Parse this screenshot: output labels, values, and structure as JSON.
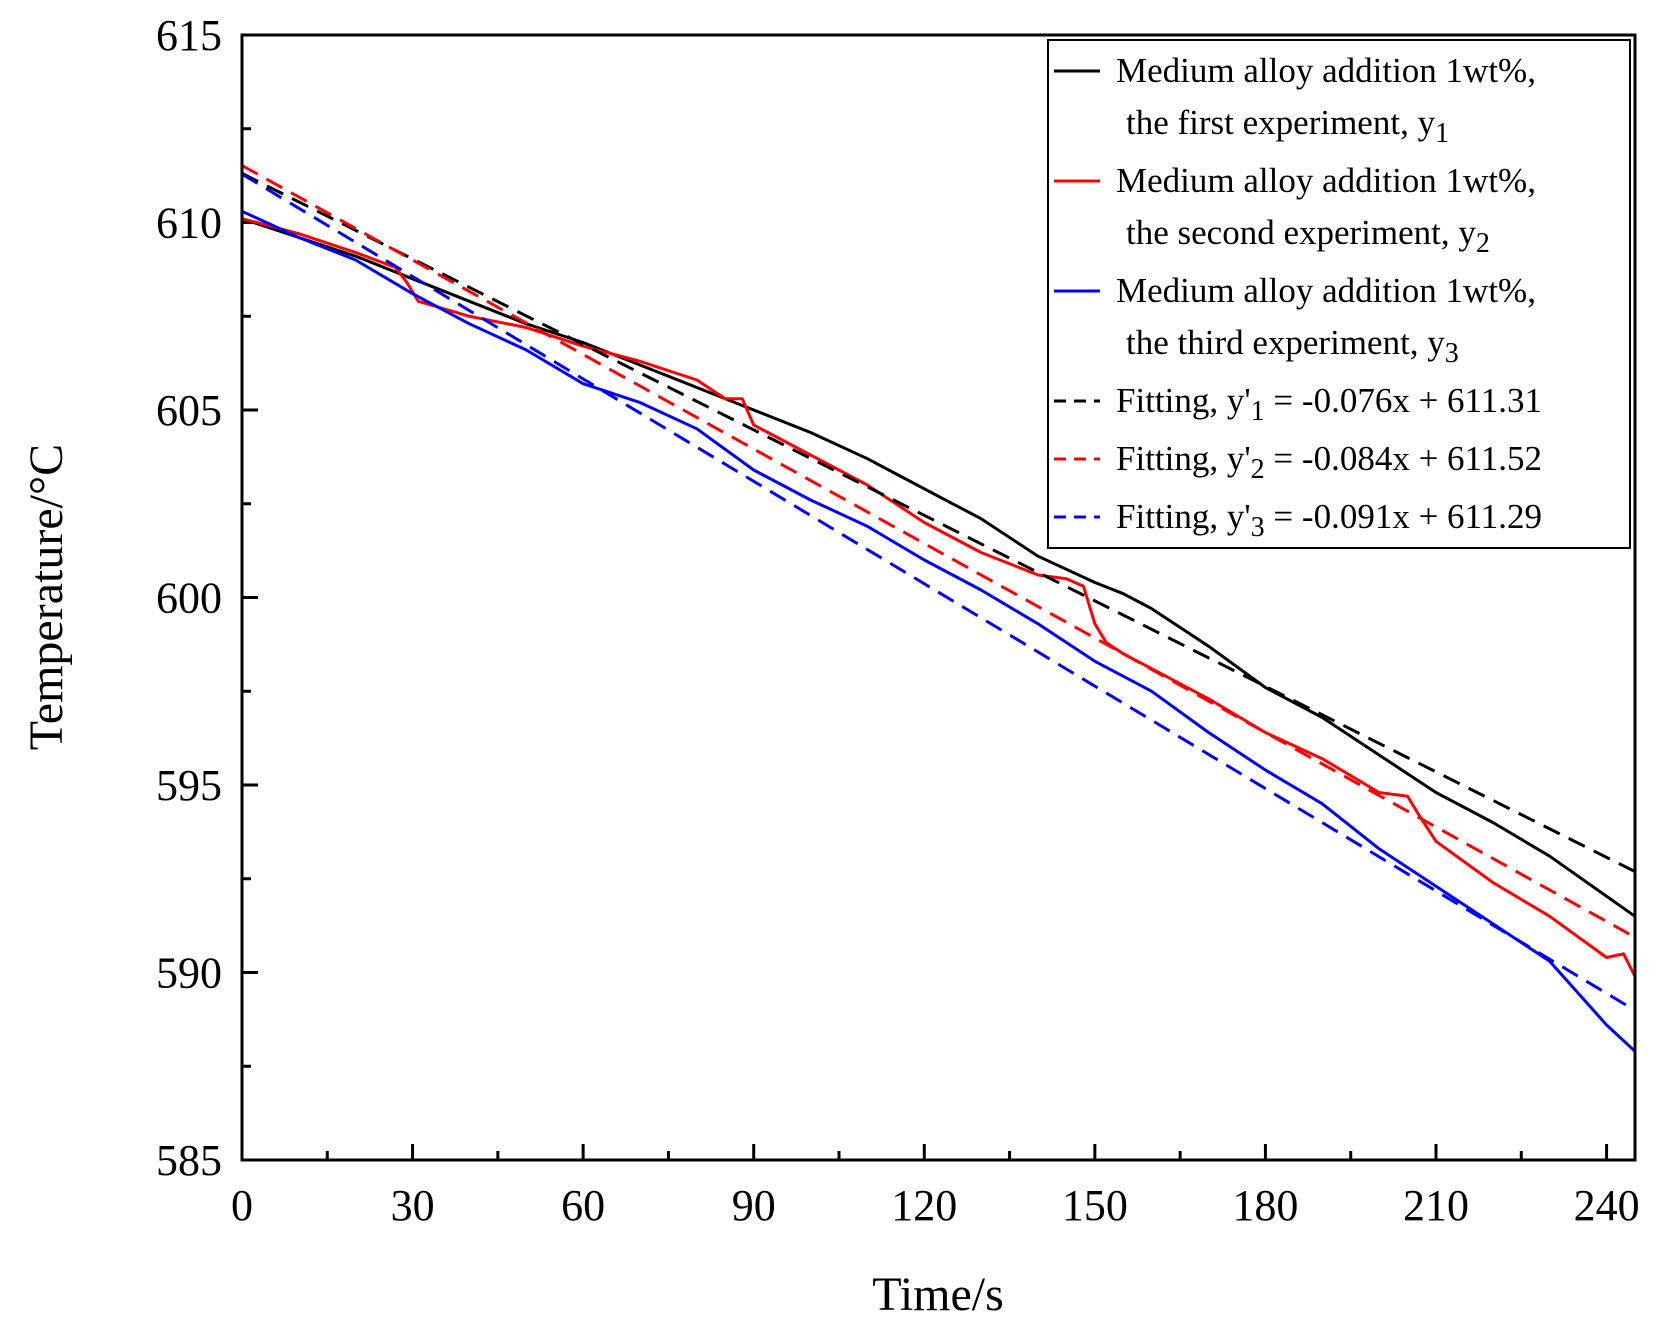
{
  "chart_data": {
    "type": "line",
    "xlabel": "Time/s",
    "ylabel": "Temperature/°C",
    "xlim": [
      0,
      245
    ],
    "ylim": [
      585,
      615
    ],
    "x_ticks": [
      0,
      30,
      60,
      90,
      120,
      150,
      180,
      210,
      240
    ],
    "x_tick_labels": [
      "0",
      "30",
      "60",
      "90",
      "120",
      "150",
      "180",
      "210",
      "240"
    ],
    "y_ticks": [
      585,
      590,
      595,
      600,
      605,
      610,
      615
    ],
    "y_tick_labels": [
      "585",
      "590",
      "595",
      "600",
      "605",
      "610",
      "615"
    ],
    "grid": false,
    "legend_position": "top-right",
    "legend": [
      {
        "lines": [
          "Medium alloy addition 1wt%,",
          "the first experiment, y"
        ],
        "sub": "1",
        "color": "#000000",
        "dash": false
      },
      {
        "lines": [
          "Medium alloy addition 1wt%,",
          "the second experiment, y"
        ],
        "sub": "2",
        "color": "#ff0000",
        "dash": false
      },
      {
        "lines": [
          "Medium alloy addition 1wt%,",
          "the third experiment, y"
        ],
        "sub": "3",
        "color": "#0000ff",
        "dash": false
      },
      {
        "lines": [
          "Fitting, y'"
        ],
        "sub": "1",
        "tail": " = -0.076x + 611.31",
        "color": "#000000",
        "dash": true
      },
      {
        "lines": [
          "Fitting, y'"
        ],
        "sub": "2",
        "tail": " = -0.084x + 611.52",
        "color": "#ff0000",
        "dash": true
      },
      {
        "lines": [
          "Fitting, y'"
        ],
        "sub": "3",
        "tail": " = -0.091x + 611.29",
        "color": "#0000ff",
        "dash": true
      }
    ],
    "series": [
      {
        "name": "Medium alloy addition 1wt%, the first experiment, y1",
        "color": "#000000",
        "dash": false,
        "x": [
          0,
          10,
          20,
          30,
          40,
          50,
          60,
          70,
          80,
          90,
          100,
          110,
          120,
          125,
          130,
          140,
          150,
          155,
          160,
          170,
          180,
          190,
          200,
          210,
          220,
          230,
          245
        ],
        "y": [
          610.1,
          609.6,
          609.1,
          608.5,
          607.9,
          607.3,
          606.8,
          606.2,
          605.6,
          605.0,
          604.4,
          603.7,
          602.9,
          602.5,
          602.1,
          601.1,
          600.4,
          600.1,
          599.7,
          598.7,
          597.6,
          596.8,
          595.8,
          594.8,
          594.0,
          593.1,
          591.5
        ]
      },
      {
        "name": "Medium alloy addition 1wt%, the second experiment, y2",
        "color": "#ff0000",
        "dash": false,
        "x": [
          0,
          10,
          20,
          27,
          29,
          31,
          40,
          50,
          60,
          70,
          80,
          85,
          88,
          90,
          100,
          110,
          120,
          130,
          140,
          145,
          148,
          150,
          152,
          155,
          160,
          170,
          180,
          190,
          200,
          205,
          207,
          210,
          220,
          230,
          240,
          243,
          245
        ],
        "y": [
          610.1,
          609.7,
          609.2,
          608.8,
          608.4,
          607.9,
          607.5,
          607.2,
          606.7,
          606.3,
          605.8,
          605.3,
          605.3,
          604.6,
          603.8,
          603.0,
          602.0,
          601.2,
          600.6,
          600.5,
          600.3,
          599.3,
          598.8,
          598.5,
          598.1,
          597.3,
          596.4,
          595.7,
          594.8,
          594.7,
          594.2,
          593.5,
          592.4,
          591.5,
          590.4,
          590.5,
          589.9
        ]
      },
      {
        "name": "Medium alloy addition 1wt%, the third experiment, y3",
        "color": "#0000ff",
        "dash": false,
        "x": [
          0,
          10,
          20,
          30,
          40,
          50,
          60,
          70,
          80,
          90,
          100,
          110,
          120,
          130,
          140,
          150,
          160,
          170,
          180,
          190,
          200,
          210,
          220,
          230,
          240,
          245
        ],
        "y": [
          610.3,
          609.6,
          609.0,
          608.1,
          607.3,
          606.6,
          605.7,
          605.2,
          604.5,
          603.4,
          602.6,
          601.9,
          601.0,
          600.2,
          599.3,
          598.3,
          597.5,
          596.4,
          595.4,
          594.5,
          593.3,
          592.3,
          591.3,
          590.3,
          588.6,
          587.9
        ]
      },
      {
        "name": "Fitting, y'1 = -0.076x + 611.31",
        "color": "#000000",
        "dash": true,
        "x": [
          0,
          245
        ],
        "y": [
          611.31,
          592.69
        ]
      },
      {
        "name": "Fitting, y'2 = -0.084x + 611.52",
        "color": "#ff0000",
        "dash": true,
        "x": [
          0,
          245
        ],
        "y": [
          611.52,
          590.94
        ]
      },
      {
        "name": "Fitting, y'3 = -0.091x + 611.29",
        "color": "#0000ff",
        "dash": true,
        "x": [
          0,
          245
        ],
        "y": [
          611.29,
          588.99
        ]
      }
    ]
  }
}
